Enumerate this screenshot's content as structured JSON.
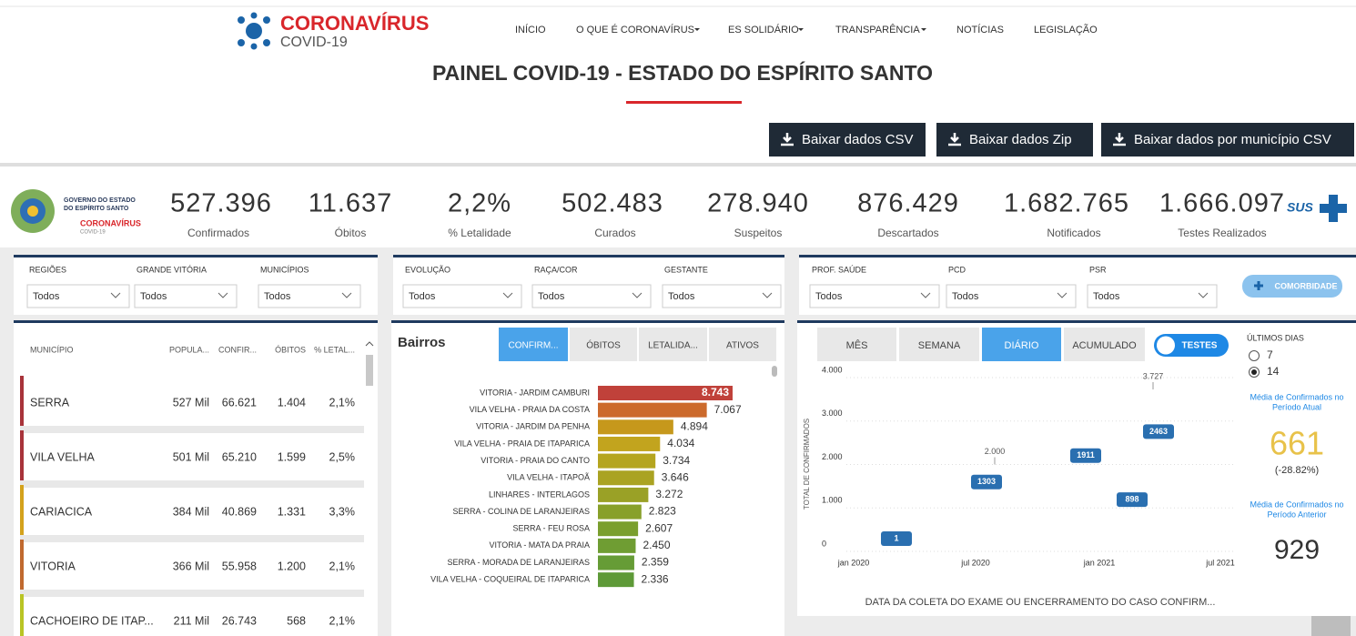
{
  "nav": {
    "brand": "CORONAVÍRUS",
    "sub": "COVID-19",
    "items": [
      "INÍCIO",
      "O QUE É CORONAVÍRUS",
      "ES SOLIDÁRIO",
      "TRANSPARÊNCIA",
      "NOTÍCIAS",
      "LEGISLAÇÃO"
    ]
  },
  "title": "PAINEL COVID-19 - ESTADO DO ESPÍRITO SANTO",
  "downloads": [
    "Baixar dados CSV",
    "Baixar dados Zip",
    "Baixar dados por município CSV"
  ],
  "header_logo": {
    "line1": "GOVERNO DO ESTADO",
    "line2": "DO ESPÍRITO SANTO",
    "brand": "CORONAVÍRUS",
    "sub": "COVID-19",
    "sus": "SUS"
  },
  "stats": [
    {
      "value": "527.396",
      "label": "Confirmados"
    },
    {
      "value": "11.637",
      "label": "Óbitos"
    },
    {
      "value": "2,2%",
      "label": "% Letalidade"
    },
    {
      "value": "502.483",
      "label": "Curados"
    },
    {
      "value": "278.940",
      "label": "Suspeitos"
    },
    {
      "value": "876.429",
      "label": "Descartados"
    },
    {
      "value": "1.682.765",
      "label": "Notificados"
    },
    {
      "value": "1.666.097",
      "label": "Testes Realizados"
    }
  ],
  "filters": [
    [
      {
        "label": "REGIÕES",
        "value": "Todos"
      },
      {
        "label": "GRANDE VITÓRIA",
        "value": "Todos"
      },
      {
        "label": "MUNICÍPIOS",
        "value": "Todos"
      }
    ],
    [
      {
        "label": "EVOLUÇÃO",
        "value": "Todos"
      },
      {
        "label": "RAÇA/COR",
        "value": "Todos"
      },
      {
        "label": "GESTANTE",
        "value": "Todos"
      }
    ],
    [
      {
        "label": "PROF. SAÚDE",
        "value": "Todos"
      },
      {
        "label": "PCD",
        "value": "Todos"
      },
      {
        "label": "PSR",
        "value": "Todos"
      }
    ]
  ],
  "comorbidade": "COMORBIDADE",
  "table": {
    "columns": [
      "MUNICÍPIO",
      "POPULA...",
      "CONFIR...",
      "ÓBITOS",
      "% LETAL..."
    ],
    "rows": [
      [
        "SERRA",
        "527 Mil",
        "66.621",
        "1.404",
        "2,1%"
      ],
      [
        "VILA VELHA",
        "501 Mil",
        "65.210",
        "1.599",
        "2,5%"
      ],
      [
        "CARIACICA",
        "384 Mil",
        "40.869",
        "1.331",
        "3,3%"
      ],
      [
        "VITORIA",
        "366 Mil",
        "55.958",
        "1.200",
        "2,1%"
      ],
      [
        "CACHOEIRO DE ITAP...",
        "211 Mil",
        "26.743",
        "568",
        "2,1%"
      ]
    ],
    "colors": [
      "#a8333a",
      "#a8333a",
      "#d4a21c",
      "#c0692f",
      "#b9c425"
    ]
  },
  "bairros": {
    "title": "Bairros",
    "tabs": [
      "CONFIRM...",
      "ÓBITOS",
      "LETALIDA...",
      "ATIVOS"
    ],
    "items": [
      {
        "name": "VITORIA - JARDIM CAMBURI",
        "value": 8743,
        "value_label": "8.743",
        "color": "#c0413a"
      },
      {
        "name": "VILA VELHA - PRAIA DA COSTA",
        "value": 7067,
        "value_label": "7.067",
        "color": "#cc6a2c"
      },
      {
        "name": "VITORIA - JARDIM DA PENHA",
        "value": 4894,
        "value_label": "4.894",
        "color": "#c6981c"
      },
      {
        "name": "VILA VELHA - PRAIA DE ITAPARICA",
        "value": 4034,
        "value_label": "4.034",
        "color": "#c2a41e"
      },
      {
        "name": "VITORIA - PRAIA DO CANTO",
        "value": 3734,
        "value_label": "3.734",
        "color": "#b5a51f"
      },
      {
        "name": "VILA VELHA - ITAPOÃ",
        "value": 3646,
        "value_label": "3.646",
        "color": "#aaa322"
      },
      {
        "name": "LINHARES - INTERLAGOS",
        "value": 3272,
        "value_label": "3.272",
        "color": "#9aa126"
      },
      {
        "name": "SERRA - COLINA DE LARANJEIRAS",
        "value": 2823,
        "value_label": "2.823",
        "color": "#88a02a"
      },
      {
        "name": "SERRA - FEU ROSA",
        "value": 2607,
        "value_label": "2.607",
        "color": "#7a9f2e"
      },
      {
        "name": "VITORIA - MATA DA PRAIA",
        "value": 2450,
        "value_label": "2.450",
        "color": "#6f9d33"
      },
      {
        "name": "SERRA - MORADA DE LARANJEIRAS",
        "value": 2359,
        "value_label": "2.359",
        "color": "#669c36"
      },
      {
        "name": "VILA VELHA - COQUEIRAL DE ITAPARICA",
        "value": 2336,
        "value_label": "2.336",
        "color": "#5e9a38"
      }
    ]
  },
  "daily": {
    "tabs": [
      "MÊS",
      "SEMANA",
      "DIÁRIO",
      "ACUMULADO"
    ],
    "toggle": "TESTES",
    "y_label": "TOTAL DE CONFIRMADOS",
    "ylim": [
      0,
      4000
    ],
    "yticks": [
      0,
      {
        "value": 1000,
        "label": "1.000"
      },
      {
        "value": 2000,
        "label": "2.000"
      },
      {
        "value": 3000,
        "label": "3.000"
      },
      {
        "value": 4000,
        "label": "4.000"
      }
    ],
    "xticks": [
      "jan 2020",
      "jul 2020",
      "jan 2021",
      "jul 2021"
    ],
    "annotations": [
      {
        "value": 1,
        "label": "1"
      },
      {
        "value": 1303,
        "label": "1303"
      },
      {
        "value": 2000,
        "label": "2.000"
      },
      {
        "value": 1911,
        "label": "1911"
      },
      {
        "value": 898,
        "label": "898"
      },
      {
        "value": 2463,
        "label": "2463"
      },
      {
        "value": 3727,
        "label": "3.727"
      }
    ],
    "x_label": "DATA DA COLETA DO EXAME OU ENCERRAMENTO DO CASO CONFIRM..."
  },
  "side": {
    "title": "ÚLTIMOS DIAS",
    "options": [
      "7",
      "14"
    ],
    "current_label": [
      "Média de Confirmados no",
      "Período Atual"
    ],
    "current": "661",
    "change": "(-28.82%)",
    "previous_label": [
      "Média de Confirmados no",
      "Período Anterior"
    ],
    "previous": "929"
  }
}
